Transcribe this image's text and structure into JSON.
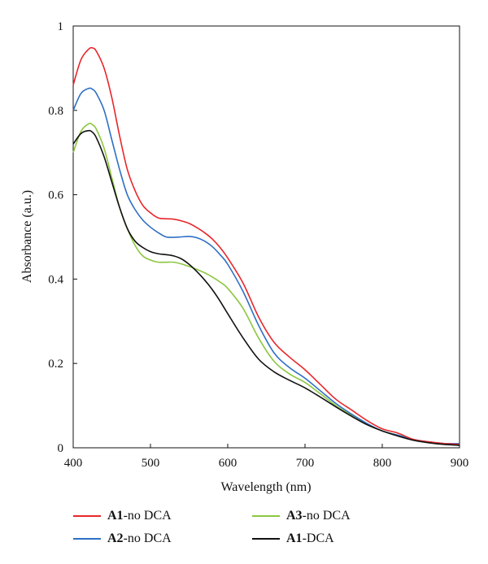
{
  "chart_data": {
    "type": "line",
    "title": "",
    "xlabel": "Wavelength (nm)",
    "ylabel": "Absorbance (a.u.)",
    "xlim": [
      400,
      900
    ],
    "ylim": [
      0,
      1
    ],
    "xticks": [
      400,
      500,
      600,
      700,
      800,
      900
    ],
    "yticks": [
      0,
      0.2,
      0.4,
      0.6,
      0.8,
      1
    ],
    "ytick_labels": [
      "0",
      "0.2",
      "0.4",
      "0.6",
      "0.8",
      "1"
    ],
    "grid": false,
    "legend_position": "bottom",
    "series": [
      {
        "name": "A1-no DCA",
        "name_bold": "A1",
        "name_rest": "-no DCA",
        "color": "#e8262b",
        "x": [
          400,
          410,
          420,
          425,
          430,
          440,
          450,
          460,
          470,
          480,
          490,
          500,
          510,
          520,
          530,
          540,
          550,
          560,
          570,
          580,
          590,
          600,
          620,
          640,
          660,
          680,
          700,
          720,
          740,
          760,
          780,
          800,
          820,
          840,
          860,
          880,
          900
        ],
        "y": [
          0.86,
          0.92,
          0.945,
          0.948,
          0.94,
          0.9,
          0.83,
          0.74,
          0.66,
          0.61,
          0.575,
          0.557,
          0.545,
          0.543,
          0.542,
          0.538,
          0.532,
          0.522,
          0.51,
          0.495,
          0.475,
          0.45,
          0.39,
          0.31,
          0.25,
          0.215,
          0.185,
          0.15,
          0.115,
          0.09,
          0.065,
          0.045,
          0.035,
          0.02,
          0.014,
          0.01,
          0.008
        ]
      },
      {
        "name": "A2-no DCA",
        "name_bold": "A2",
        "name_rest": "-no DCA",
        "color": "#2e6fc4",
        "x": [
          400,
          410,
          420,
          425,
          430,
          440,
          450,
          460,
          470,
          480,
          490,
          500,
          510,
          520,
          530,
          540,
          550,
          560,
          570,
          580,
          590,
          600,
          620,
          640,
          660,
          680,
          700,
          720,
          740,
          760,
          780,
          800,
          820,
          840,
          860,
          880,
          900
        ],
        "y": [
          0.8,
          0.84,
          0.852,
          0.85,
          0.84,
          0.8,
          0.73,
          0.66,
          0.6,
          0.565,
          0.54,
          0.523,
          0.51,
          0.5,
          0.499,
          0.5,
          0.501,
          0.498,
          0.49,
          0.477,
          0.458,
          0.435,
          0.37,
          0.29,
          0.225,
          0.19,
          0.165,
          0.135,
          0.105,
          0.08,
          0.058,
          0.04,
          0.03,
          0.02,
          0.014,
          0.01,
          0.01
        ]
      },
      {
        "name": "A3-no DCA",
        "name_bold": "A3",
        "name_rest": "-no DCA",
        "color": "#8cc63f",
        "x": [
          400,
          410,
          420,
          425,
          430,
          440,
          450,
          460,
          470,
          480,
          490,
          500,
          510,
          520,
          530,
          540,
          550,
          560,
          570,
          580,
          590,
          600,
          620,
          640,
          660,
          680,
          700,
          720,
          740,
          760,
          780,
          800,
          820,
          840,
          860,
          880,
          900
        ],
        "y": [
          0.7,
          0.75,
          0.768,
          0.766,
          0.755,
          0.71,
          0.64,
          0.57,
          0.52,
          0.48,
          0.455,
          0.445,
          0.44,
          0.44,
          0.44,
          0.436,
          0.43,
          0.423,
          0.415,
          0.405,
          0.393,
          0.378,
          0.33,
          0.26,
          0.205,
          0.175,
          0.155,
          0.128,
          0.1,
          0.077,
          0.055,
          0.04,
          0.03,
          0.02,
          0.014,
          0.01,
          0.008
        ]
      },
      {
        "name": "A1-DCA",
        "name_bold": "A1",
        "name_rest": "-DCA",
        "color": "#111111",
        "x": [
          400,
          410,
          420,
          425,
          430,
          440,
          450,
          460,
          470,
          480,
          490,
          500,
          510,
          520,
          530,
          540,
          550,
          560,
          570,
          580,
          590,
          600,
          620,
          640,
          660,
          680,
          700,
          720,
          740,
          760,
          780,
          800,
          820,
          840,
          860,
          880,
          900
        ],
        "y": [
          0.72,
          0.745,
          0.752,
          0.748,
          0.735,
          0.69,
          0.63,
          0.57,
          0.52,
          0.49,
          0.475,
          0.465,
          0.46,
          0.458,
          0.455,
          0.448,
          0.435,
          0.418,
          0.398,
          0.375,
          0.348,
          0.318,
          0.26,
          0.21,
          0.18,
          0.16,
          0.142,
          0.12,
          0.097,
          0.075,
          0.055,
          0.04,
          0.028,
          0.018,
          0.012,
          0.008,
          0.006
        ]
      }
    ]
  }
}
